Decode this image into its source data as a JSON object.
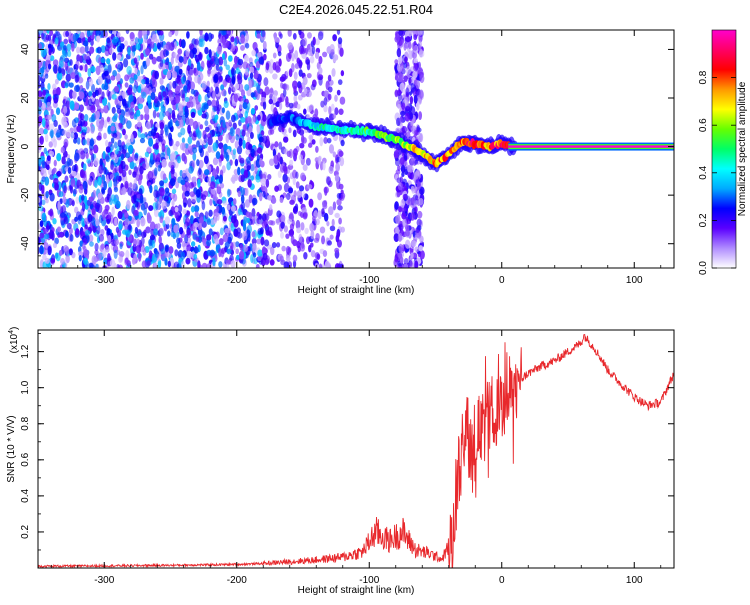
{
  "figure_title": "C2E4.2026.045.22.51.R04",
  "colors": {
    "snr_line": "#e8282c",
    "mono_line": "#e8282c",
    "speckle": "#6a1fe0",
    "background": "#ffffff"
  },
  "chart_data": [
    {
      "type": "heatmap",
      "title": "C2E4.2026.045.22.51.R04",
      "xlabel": "Height of straight line (km)",
      "ylabel": "Frequency (Hz)",
      "xlim": [
        -350,
        130
      ],
      "ylim": [
        -50,
        48
      ],
      "x_ticks": [
        -300,
        -200,
        -100,
        0,
        100
      ],
      "x_tick_labels": [
        "-300",
        "-200",
        "-100",
        "0",
        "100"
      ],
      "y_ticks": [
        -40,
        -20,
        0,
        20,
        40
      ],
      "y_tick_labels": [
        "-40",
        "-20",
        "0",
        "20",
        "40"
      ],
      "grid": false,
      "colorbar": {
        "label": "Normalized spectral amplitude",
        "range": [
          0.0,
          1.0
        ],
        "ticks": [
          0.0,
          0.2,
          0.4,
          0.6,
          0.8
        ],
        "tick_labels": [
          "0.0",
          "0.2",
          "0.4",
          "0.6",
          "0.8"
        ],
        "colormap_stops": [
          "#ffffff",
          "#b08cff",
          "#5a00ff",
          "#0000ff",
          "#00aaff",
          "#00ffff",
          "#00ff66",
          "#66ff00",
          "#ffff00",
          "#ff9900",
          "#ff0000",
          "#ff0066",
          "#ff00cc"
        ]
      },
      "noise_regions": [
        {
          "x_from": -350,
          "x_to": -180,
          "density": "high"
        },
        {
          "x_from": -180,
          "x_to": -120,
          "density": "medium"
        },
        {
          "x_from": -80,
          "x_to": -60,
          "density": "medium"
        }
      ],
      "signal_ridge": {
        "x": [
          -175,
          -160,
          -140,
          -120,
          -100,
          -80,
          -60,
          -50,
          -40,
          -30,
          -20,
          -10,
          0,
          10,
          130
        ],
        "frequency": [
          10,
          12,
          8,
          7,
          6,
          3,
          -3,
          -7,
          -3,
          2,
          1,
          0,
          1,
          0,
          0
        ],
        "amplitude": [
          0.25,
          0.3,
          0.45,
          0.5,
          0.55,
          0.6,
          0.75,
          0.8,
          0.85,
          0.9,
          0.85,
          0.8,
          0.9,
          0.95,
          1.0
        ]
      }
    },
    {
      "type": "line",
      "title": "",
      "xlabel": "Height of straight line (km)",
      "ylabel": "SNR (10 * V/V)",
      "y_exponent_label": "(x10",
      "y_exponent_power": "4",
      "xlim": [
        -350,
        130
      ],
      "ylim": [
        0.0,
        1.32
      ],
      "x_ticks": [
        -300,
        -200,
        -100,
        0,
        100
      ],
      "x_tick_labels": [
        "-300",
        "-200",
        "-100",
        "0",
        "100"
      ],
      "y_ticks": [
        0.2,
        0.4,
        0.6,
        0.8,
        1.0,
        1.2
      ],
      "y_tick_labels": [
        "0.2",
        "0.4",
        "0.6",
        "0.8",
        "1.0",
        "1.2"
      ],
      "grid": false,
      "series": [
        {
          "name": "SNR",
          "x": [
            -350,
            -300,
            -250,
            -200,
            -180,
            -160,
            -140,
            -120,
            -105,
            -95,
            -85,
            -75,
            -65,
            -55,
            -45,
            -38,
            -33,
            -28,
            -22,
            -15,
            -8,
            0,
            5,
            10,
            15,
            20,
            30,
            40,
            50,
            60,
            62,
            70,
            80,
            90,
            100,
            110,
            120,
            130
          ],
          "y": [
            0.01,
            0.012,
            0.015,
            0.02,
            0.025,
            0.035,
            0.045,
            0.06,
            0.09,
            0.2,
            0.15,
            0.2,
            0.1,
            0.08,
            0.05,
            0.15,
            0.4,
            0.7,
            0.72,
            0.78,
            0.85,
            0.92,
            0.95,
            1.0,
            1.05,
            1.08,
            1.12,
            1.15,
            1.2,
            1.25,
            1.29,
            1.22,
            1.1,
            1.02,
            0.95,
            0.9,
            0.92,
            1.08
          ]
        }
      ]
    }
  ]
}
